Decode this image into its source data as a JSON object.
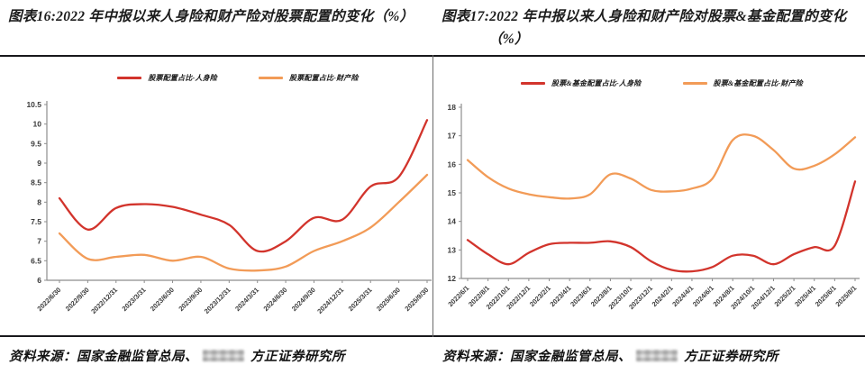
{
  "footer": {
    "prefix": "资料来源：国家金融监管总局、",
    "suffix": "方正证券研究所"
  },
  "chart_data": [
    {
      "type": "line",
      "title": "图表16:2022 年中报以来人身险和财产险对股票配置的变化（%）",
      "xlabel": "",
      "ylabel": "",
      "ylim": [
        6,
        10.5
      ],
      "ytick_step": 0.5,
      "grid": false,
      "legend_position": "top",
      "categories": [
        "2022/6/30",
        "2022/9/30",
        "2022/12/31",
        "2023/3/31",
        "2023/6/30",
        "2023/9/30",
        "2023/12/31",
        "2024/3/31",
        "2024/6/30",
        "2024/9/30",
        "2024/12/31",
        "2025/3/31",
        "2025/6/30",
        "2025/9/30"
      ],
      "series": [
        {
          "name": "股票配置占比-人身险",
          "color": "#d2342c",
          "values": [
            8.1,
            7.3,
            7.85,
            7.95,
            7.88,
            7.68,
            7.42,
            6.75,
            7.0,
            7.6,
            7.55,
            8.4,
            8.65,
            10.1
          ]
        },
        {
          "name": "股票配置占比-财产险",
          "color": "#f29b57",
          "values": [
            7.2,
            6.55,
            6.6,
            6.65,
            6.5,
            6.6,
            6.3,
            6.25,
            6.35,
            6.75,
            7.0,
            7.35,
            8.0,
            8.7
          ]
        }
      ]
    },
    {
      "type": "line",
      "title": "图表17:2022 年中报以来人身险和财产险对股票&基金配置的变化（%）",
      "xlabel": "",
      "ylabel": "",
      "ylim": [
        12,
        18
      ],
      "ytick_step": 1,
      "grid": false,
      "legend_position": "top",
      "categories": [
        "2022/6/1",
        "2022/8/1",
        "2022/10/1",
        "2022/12/1",
        "2023/2/1",
        "2023/4/1",
        "2023/6/1",
        "2023/8/1",
        "2023/10/1",
        "2023/12/1",
        "2024/2/1",
        "2024/4/1",
        "2024/6/1",
        "2024/8/1",
        "2024/10/1",
        "2024/12/1",
        "2025/2/1",
        "2025/4/1",
        "2025/6/1",
        "2025/8/1"
      ],
      "series": [
        {
          "name": "股票&基金配置占比-人身险",
          "color": "#d2342c",
          "values": [
            13.35,
            12.85,
            12.5,
            12.9,
            13.2,
            13.25,
            13.25,
            13.3,
            13.1,
            12.6,
            12.3,
            12.25,
            12.4,
            12.8,
            12.8,
            12.5,
            12.85,
            13.1,
            13.15,
            15.4
          ]
        },
        {
          "name": "股票&基金配置占比-财产险",
          "color": "#f29b57",
          "values": [
            16.15,
            15.55,
            15.15,
            14.95,
            14.85,
            14.8,
            14.95,
            15.65,
            15.5,
            15.1,
            15.05,
            15.15,
            15.5,
            16.85,
            17.0,
            16.5,
            15.85,
            15.95,
            16.35,
            16.95
          ]
        }
      ]
    }
  ]
}
